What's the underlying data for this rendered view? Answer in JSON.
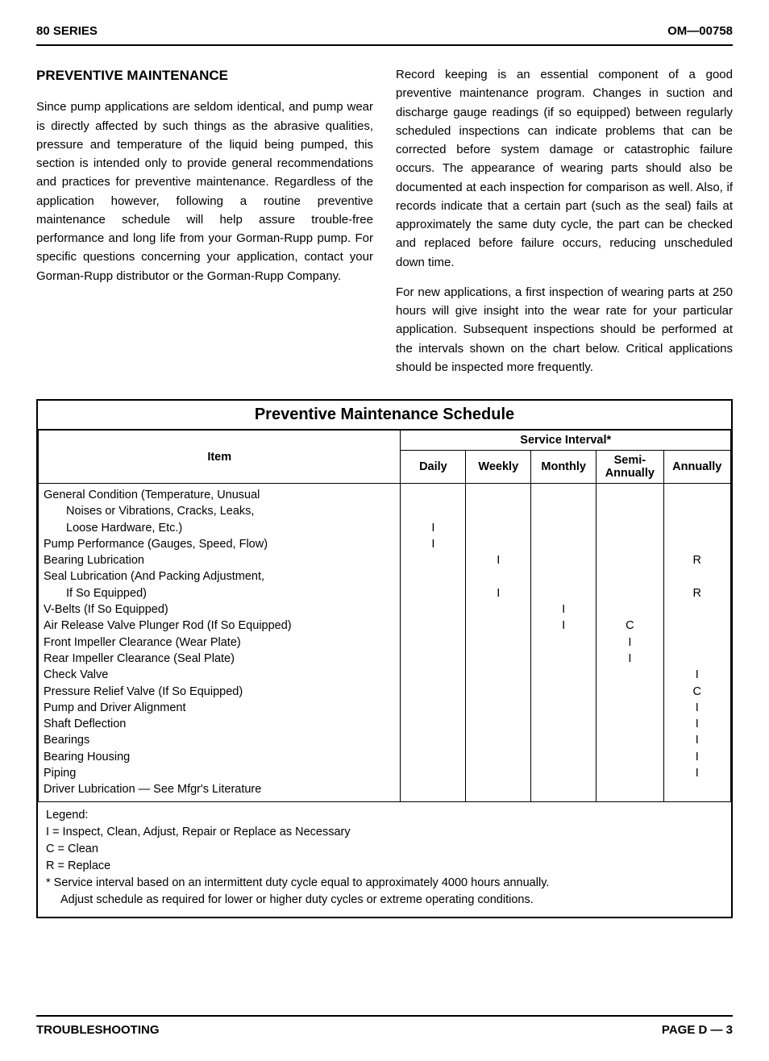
{
  "header": {
    "left": "80 SERIES",
    "right": "OM—00758"
  },
  "section_title": "PREVENTIVE MAINTENANCE",
  "paragraphs": [
    "Since pump applications are seldom identical, and pump wear is directly affected by such things as the abrasive qualities, pressure and temperature of the liquid being pumped, this section is intended only to provide general recommendations and practices for preventive maintenance. Regardless of the application however, following a routine preventive maintenance schedule will help assure trouble-free performance and long life from your Gorman-Rupp pump. For specific questions concerning your application, contact your Gorman-Rupp distributor or the Gorman-Rupp Company.",
    "Record keeping is an essential component of a good preventive maintenance program. Changes in suction and discharge gauge readings (if so equipped) between regularly scheduled inspections can indicate problems that can be corrected before system damage or catastrophic failure occurs. The appearance of wearing parts should also be documented at each inspection for comparison as well. Also, if records indicate that a certain part (such as the seal) fails at approximately the same duty cycle, the part can be checked and replaced before failure occurs, reducing unscheduled down time.",
    "For new applications, a first inspection of wearing parts at 250 hours will give insight into the wear rate for your particular application. Subsequent inspections should be performed at the intervals shown on the chart below. Critical applications should be inspected more frequently."
  ],
  "table": {
    "title": "Preventive Maintenance Schedule",
    "item_header": "Item",
    "interval_header": "Service Interval*",
    "columns": [
      "Daily",
      "Weekly",
      "Monthly",
      "Semi-\nAnnually",
      "Annually"
    ],
    "rows": [
      {
        "label": "General Condition (Temperature, Unusual",
        "indent": false,
        "marks": [
          "",
          "",
          "",
          "",
          ""
        ]
      },
      {
        "label": "Noises or Vibrations, Cracks, Leaks,",
        "indent": true,
        "marks": [
          "",
          "",
          "",
          "",
          ""
        ]
      },
      {
        "label": "Loose Hardware, Etc.)",
        "indent": true,
        "marks": [
          "I",
          "",
          "",
          "",
          ""
        ]
      },
      {
        "label": "Pump Performance (Gauges, Speed, Flow)",
        "indent": false,
        "marks": [
          "I",
          "",
          "",
          "",
          ""
        ]
      },
      {
        "label": "Bearing Lubrication",
        "indent": false,
        "marks": [
          "",
          "I",
          "",
          "",
          "R"
        ]
      },
      {
        "label": "Seal Lubrication (And Packing Adjustment,",
        "indent": false,
        "marks": [
          "",
          "",
          "",
          "",
          ""
        ]
      },
      {
        "label": "If So Equipped)",
        "indent": true,
        "marks": [
          "",
          "I",
          "",
          "",
          "R"
        ]
      },
      {
        "label": "V-Belts (If So Equipped)",
        "indent": false,
        "marks": [
          "",
          "",
          "I",
          "",
          ""
        ]
      },
      {
        "label": "Air Release Valve Plunger Rod (If So Equipped)",
        "indent": false,
        "marks": [
          "",
          "",
          "I",
          "C",
          ""
        ]
      },
      {
        "label": "Front Impeller Clearance (Wear Plate)",
        "indent": false,
        "marks": [
          "",
          "",
          "",
          "I",
          ""
        ]
      },
      {
        "label": "Rear Impeller Clearance (Seal Plate)",
        "indent": false,
        "marks": [
          "",
          "",
          "",
          "I",
          ""
        ]
      },
      {
        "label": "Check Valve",
        "indent": false,
        "marks": [
          "",
          "",
          "",
          "",
          "I"
        ]
      },
      {
        "label": "Pressure Relief Valve (If So Equipped)",
        "indent": false,
        "marks": [
          "",
          "",
          "",
          "",
          "C"
        ]
      },
      {
        "label": "Pump and Driver Alignment",
        "indent": false,
        "marks": [
          "",
          "",
          "",
          "",
          "I"
        ]
      },
      {
        "label": "Shaft Deflection",
        "indent": false,
        "marks": [
          "",
          "",
          "",
          "",
          "I"
        ]
      },
      {
        "label": "Bearings",
        "indent": false,
        "marks": [
          "",
          "",
          "",
          "",
          "I"
        ]
      },
      {
        "label": "Bearing Housing",
        "indent": false,
        "marks": [
          "",
          "",
          "",
          "",
          "I"
        ]
      },
      {
        "label": "Piping",
        "indent": false,
        "marks": [
          "",
          "",
          "",
          "",
          "I"
        ]
      },
      {
        "label": "Driver Lubrication — See Mfgr's Literature",
        "indent": false,
        "marks": [
          "",
          "",
          "",
          "",
          ""
        ]
      }
    ],
    "legend": {
      "title": "Legend:",
      "lines": [
        "I = Inspect, Clean, Adjust, Repair or Replace as Necessary",
        "C = Clean",
        "R = Replace"
      ],
      "note": "* Service interval based on an intermittent duty cycle equal to approximately 4000 hours annually.",
      "note2": "Adjust schedule as required for lower or higher duty cycles or extreme operating conditions."
    }
  },
  "footer": {
    "left": "TROUBLESHOOTING",
    "right": "PAGE D — 3"
  }
}
